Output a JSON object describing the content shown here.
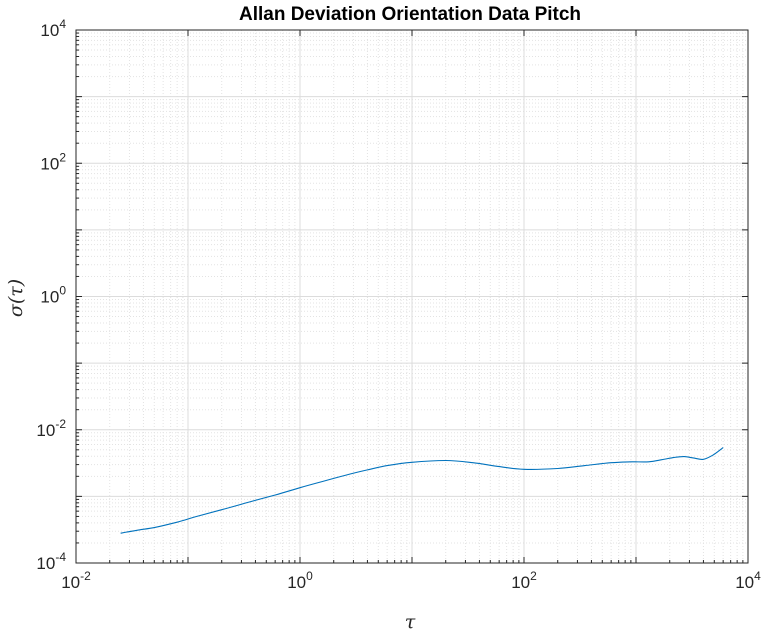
{
  "chart_data": {
    "type": "line",
    "title": "Allan Deviation Orientation Data Pitch",
    "xlabel": "τ",
    "ylabel": "σ(τ)",
    "xscale": "log",
    "yscale": "log",
    "xlim": [
      0.01,
      10000
    ],
    "ylim": [
      0.0001,
      10000
    ],
    "x_ticks": [
      {
        "base": "10",
        "exp": "-2"
      },
      {
        "base": "10",
        "exp": "0"
      },
      {
        "base": "10",
        "exp": "2"
      },
      {
        "base": "10",
        "exp": "4"
      }
    ],
    "y_ticks": [
      {
        "base": "10",
        "exp": "-4"
      },
      {
        "base": "10",
        "exp": "-2"
      },
      {
        "base": "10",
        "exp": "0"
      },
      {
        "base": "10",
        "exp": "2"
      },
      {
        "base": "10",
        "exp": "4"
      }
    ],
    "grid": true,
    "minor_grid": true,
    "series": [
      {
        "color": "#0072BD",
        "x": [
          0.025,
          0.035,
          0.05,
          0.08,
          0.12,
          0.2,
          0.35,
          0.6,
          1.0,
          1.6,
          2.5,
          4,
          6,
          10,
          20,
          35,
          60,
          100,
          200,
          350,
          600,
          900,
          1300,
          1700,
          2200,
          2700,
          3300,
          4000,
          4900,
          6000
        ],
        "y": [
          0.00028,
          0.00031,
          0.00034,
          0.00041,
          0.0005,
          0.00063,
          0.00082,
          0.00105,
          0.00135,
          0.00168,
          0.00206,
          0.0025,
          0.0029,
          0.00325,
          0.00345,
          0.0032,
          0.0028,
          0.00255,
          0.00262,
          0.0029,
          0.0032,
          0.0033,
          0.0033,
          0.00355,
          0.00385,
          0.00395,
          0.00375,
          0.0036,
          0.0042,
          0.0054
        ]
      }
    ]
  }
}
